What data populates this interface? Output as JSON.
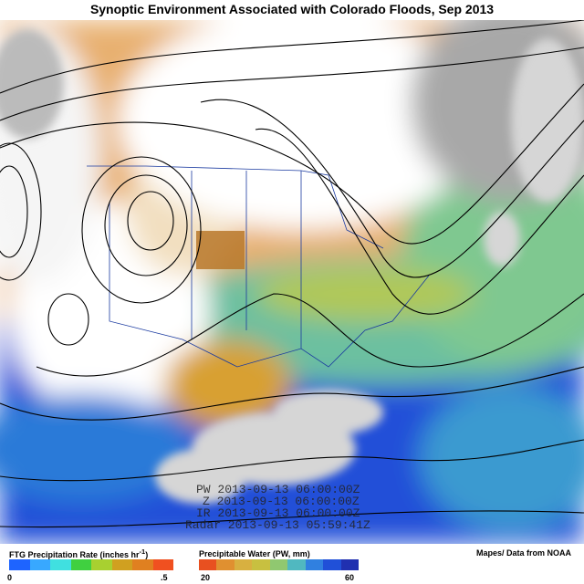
{
  "title": "Synoptic Environment Associated with Colorado Floods, Sep 2013",
  "timestamps": [
    "PW 2013-09-13 06:00:00Z",
    "Z 2013-09-13 06:00:00Z",
    "IR 2013-09-13 06:00:00Z",
    "Radar 2013-09-13 05:59:41Z"
  ],
  "legend_precip": {
    "title": "FTG Precipitation Rate (inches hr",
    "superscript": "-1",
    "title_end": ")",
    "min_label": "0",
    "max_label": ".5"
  },
  "legend_pw": {
    "title": "Precipitable Water (PW, mm)",
    "min_label": "20",
    "max_label": "60"
  },
  "credit": "Mapes/ Data from NOAA"
}
